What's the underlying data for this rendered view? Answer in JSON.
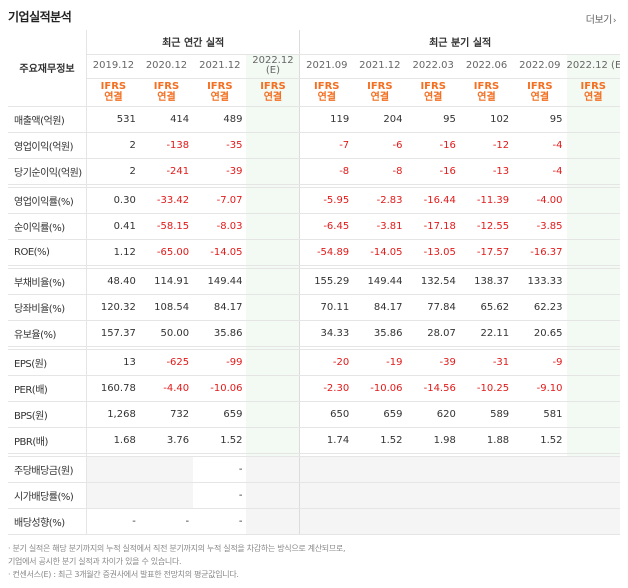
{
  "header": {
    "title": "기업실적분석",
    "more_label": "더보기",
    "more_arrow": "›"
  },
  "table": {
    "row_head": "주요재무정보",
    "annual_group": "최근 연간 실적",
    "quarter_group": "최근 분기 실적",
    "periods": [
      "2019.12",
      "2020.12",
      "2021.12",
      "2022.12",
      "2021.09",
      "2021.12",
      "2022.03",
      "2022.06",
      "2022.09",
      "2022.12"
    ],
    "estimate_mark": "(E)",
    "ifrs": "IFRS",
    "consolidated": "연결",
    "rows": [
      {
        "label": "매출액(억원)",
        "values": [
          "531",
          "414",
          "489",
          "",
          "119",
          "204",
          "95",
          "102",
          "95",
          ""
        ]
      },
      {
        "label": "영업이익(억원)",
        "values": [
          "2",
          "-138",
          "-35",
          "",
          "-7",
          "-6",
          "-16",
          "-12",
          "-4",
          ""
        ]
      },
      {
        "label": "당기순이익(억원)",
        "values": [
          "2",
          "-241",
          "-39",
          "",
          "-8",
          "-8",
          "-16",
          "-13",
          "-4",
          ""
        ]
      },
      {
        "label": "영업이익률(%)",
        "values": [
          "0.30",
          "-33.42",
          "-7.07",
          "",
          "-5.95",
          "-2.83",
          "-16.44",
          "-11.39",
          "-4.00",
          ""
        ]
      },
      {
        "label": "순이익률(%)",
        "values": [
          "0.41",
          "-58.15",
          "-8.03",
          "",
          "-6.45",
          "-3.81",
          "-17.18",
          "-12.55",
          "-3.85",
          ""
        ]
      },
      {
        "label": "ROE(%)",
        "values": [
          "1.12",
          "-65.00",
          "-14.05",
          "",
          "-54.89",
          "-14.05",
          "-13.05",
          "-17.57",
          "-16.37",
          ""
        ]
      },
      {
        "label": "부채비율(%)",
        "values": [
          "48.40",
          "114.91",
          "149.44",
          "",
          "155.29",
          "149.44",
          "132.54",
          "138.37",
          "133.33",
          ""
        ]
      },
      {
        "label": "당좌비율(%)",
        "values": [
          "120.32",
          "108.54",
          "84.17",
          "",
          "70.11",
          "84.17",
          "77.84",
          "65.62",
          "62.23",
          ""
        ]
      },
      {
        "label": "유보율(%)",
        "values": [
          "157.37",
          "50.00",
          "35.86",
          "",
          "34.33",
          "35.86",
          "28.07",
          "22.11",
          "20.65",
          ""
        ]
      },
      {
        "label": "EPS(원)",
        "values": [
          "13",
          "-625",
          "-99",
          "",
          "-20",
          "-19",
          "-39",
          "-31",
          "-9",
          ""
        ]
      },
      {
        "label": "PER(배)",
        "values": [
          "160.78",
          "-4.40",
          "-10.06",
          "",
          "-2.30",
          "-10.06",
          "-14.56",
          "-10.25",
          "-9.10",
          ""
        ]
      },
      {
        "label": "BPS(원)",
        "values": [
          "1,268",
          "732",
          "659",
          "",
          "650",
          "659",
          "620",
          "589",
          "581",
          ""
        ]
      },
      {
        "label": "PBR(배)",
        "values": [
          "1.68",
          "3.76",
          "1.52",
          "",
          "1.74",
          "1.52",
          "1.98",
          "1.88",
          "1.52",
          ""
        ]
      },
      {
        "label": "주당배당금(원)",
        "values": [
          "",
          "",
          "-",
          "",
          "",
          "",
          "",
          "",
          "",
          ""
        ]
      },
      {
        "label": "시가배당률(%)",
        "values": [
          "",
          "",
          "-",
          "",
          "",
          "",
          "",
          "",
          "",
          ""
        ]
      },
      {
        "label": "배당성향(%)",
        "values": [
          "-",
          "-",
          "-",
          "",
          "",
          "",
          "",
          "",
          "",
          ""
        ]
      }
    ]
  },
  "footnotes": [
    "· 분기 실적은 해당 분기까지의 누적 실적에서 직전 분기까지의 누적 실적을 차감하는 방식으로 계산되므로,",
    "  기업에서 공시한 분기 실적과 차이가 있을 수 있습니다.",
    "· 컨센서스(E) : 최근 3개월간 증권사에서 발표한 전망치의 평균값입니다."
  ]
}
